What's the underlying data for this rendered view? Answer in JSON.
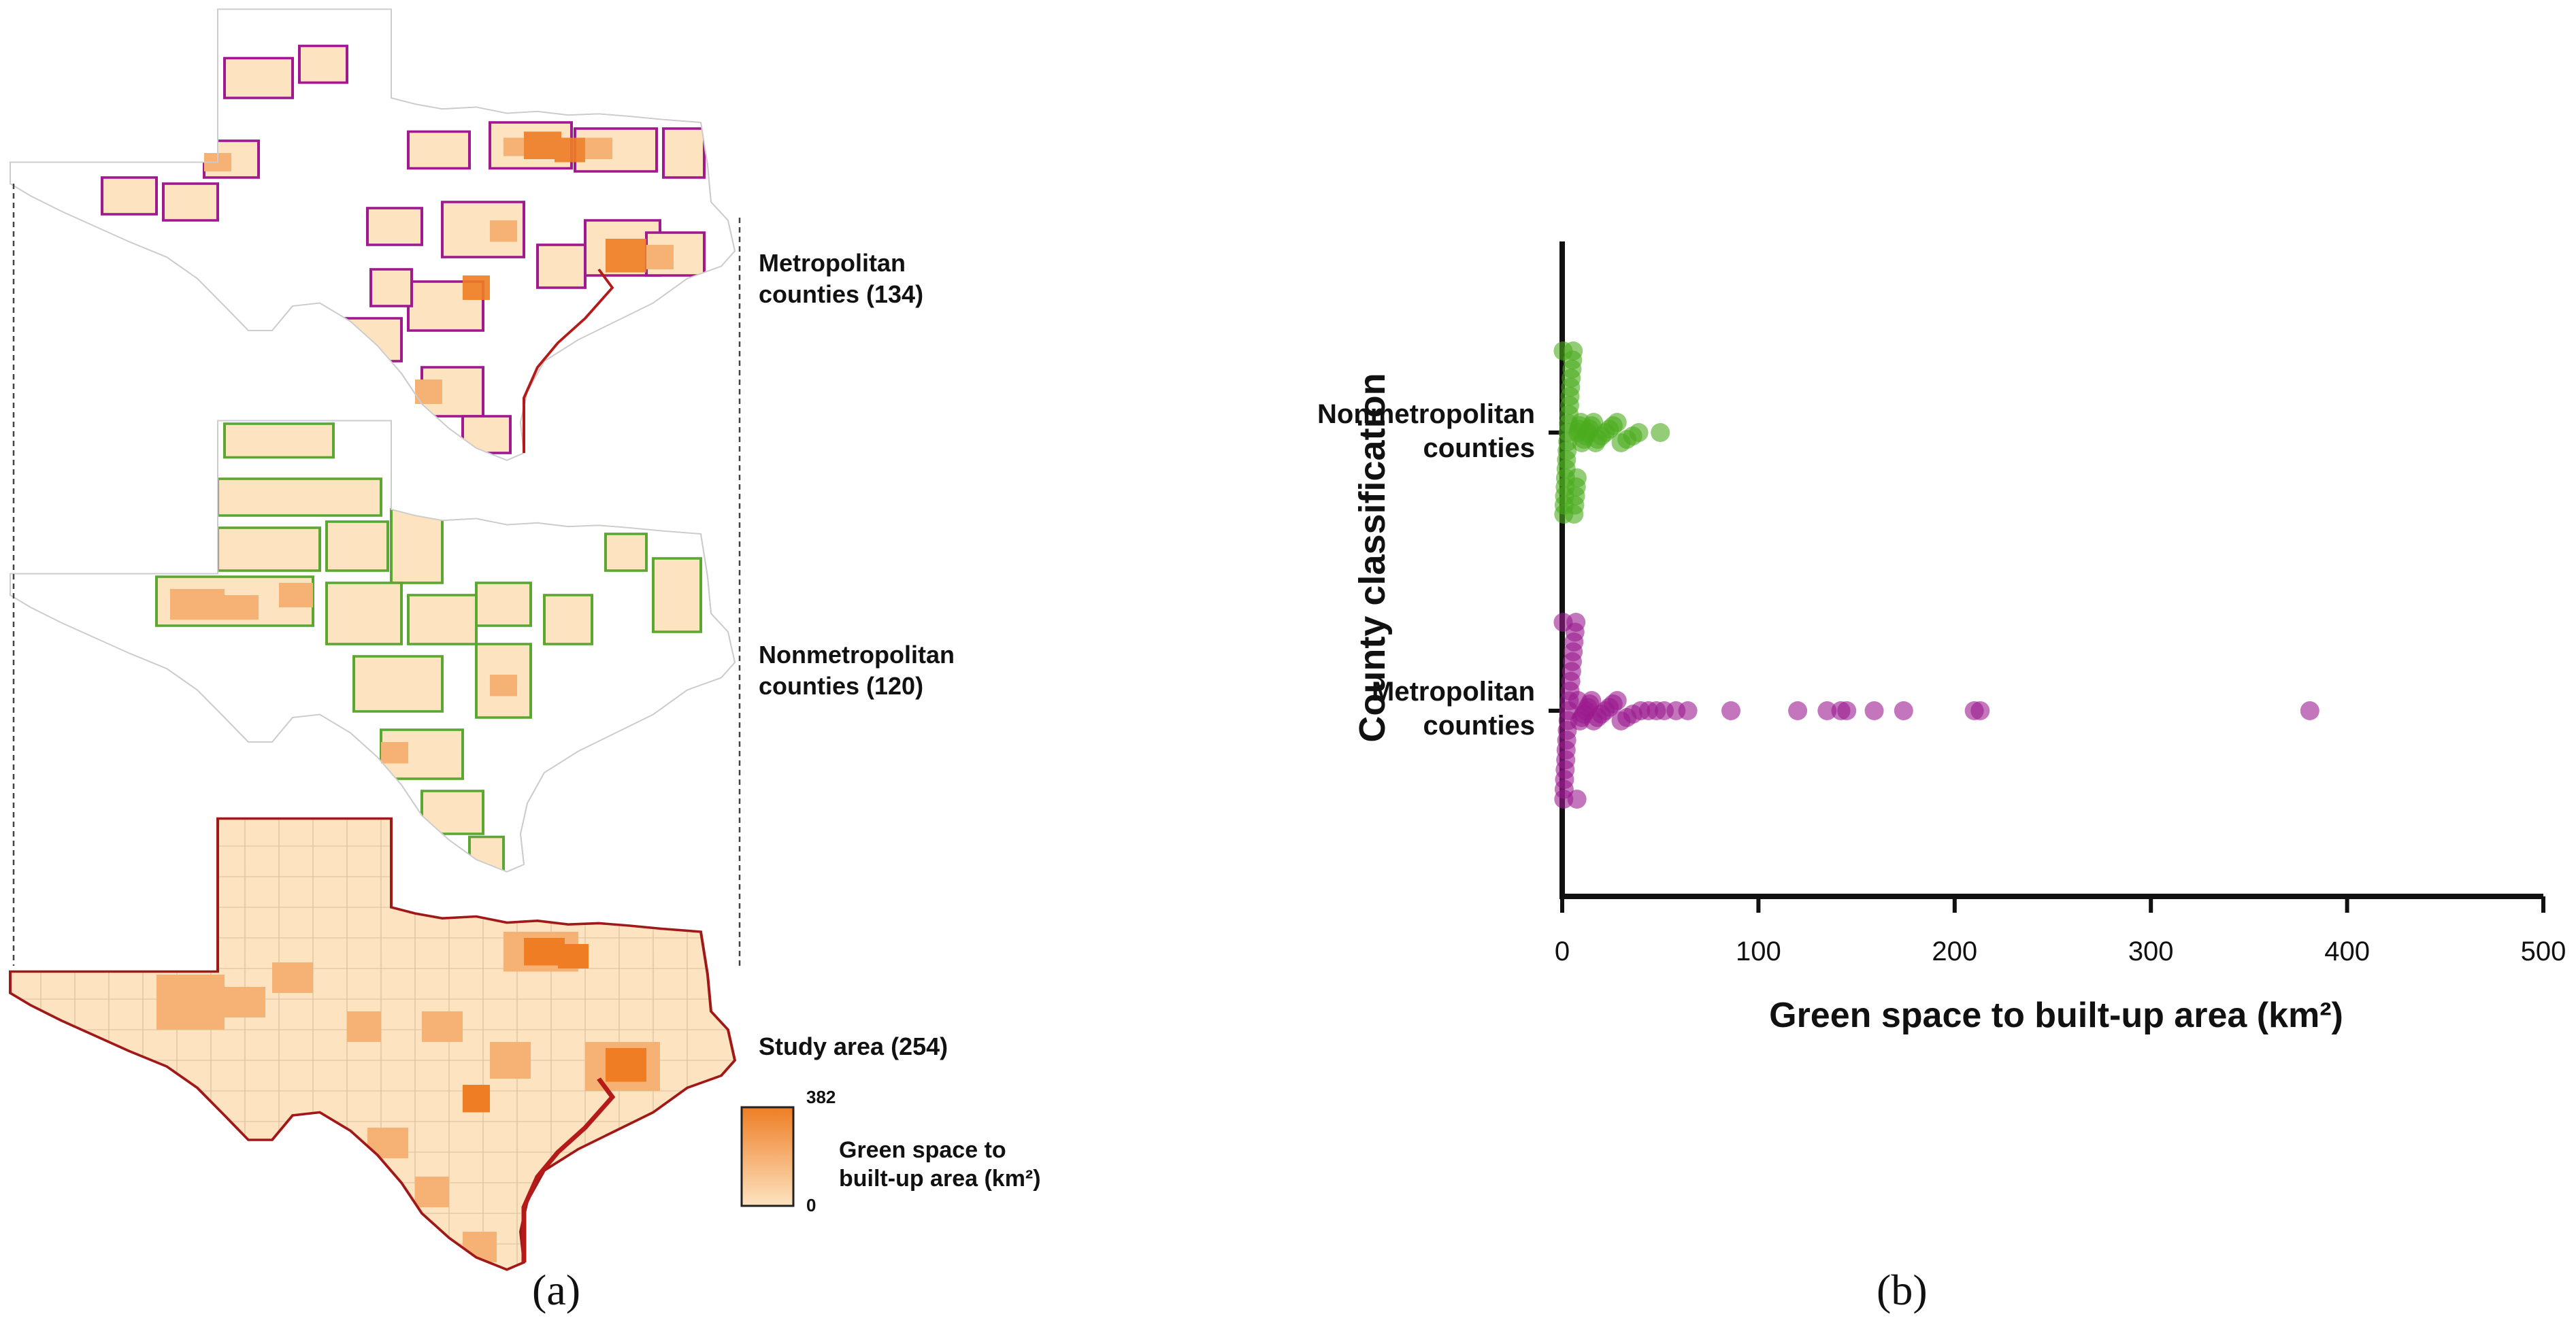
{
  "panel_a": {
    "label": "(a)",
    "maps": [
      {
        "name": "metro",
        "label_line1": "Metropolitan",
        "label_line2": "counties (134)",
        "outline": "#a0198e"
      },
      {
        "name": "nonmetro",
        "label_line1": "Nonmetropolitan",
        "label_line2": "counties (120)",
        "outline": "#5aa832"
      },
      {
        "name": "study",
        "label_line1": "Study area (254)",
        "label_line2": "",
        "outline": "#a01818"
      }
    ],
    "legend": {
      "max": "382",
      "min": "0",
      "title_line1": "Green space to",
      "title_line2": "built-up area (km²)",
      "color_low": "#fde3c0",
      "color_high": "#ee7d24"
    },
    "colors": {
      "light_fill": "#fde3c0",
      "mid_fill": "#f6b274",
      "dark_fill": "#ee7d24",
      "county_line": "#c8c8c8",
      "coast": "#b51a1a"
    }
  },
  "panel_b": {
    "label": "(b)"
  },
  "chart_data": {
    "type": "scatter",
    "title": "",
    "xlabel": "Green space to built-up area (km²)",
    "ylabel": "County classification",
    "xlim": [
      0,
      500
    ],
    "xticks": [
      0,
      100,
      200,
      300,
      400,
      500
    ],
    "categories": [
      "Nonmetropolitan counties",
      "Metropolitan counties"
    ],
    "category_lines": [
      [
        "Nonmetropolitan",
        "counties"
      ],
      [
        "Metropolitan",
        "counties"
      ]
    ],
    "grid": false,
    "series": [
      {
        "name": "Nonmetropolitan counties",
        "color": "#4bab1e",
        "values": [
          0.5,
          0.8,
          1,
          1.2,
          1.5,
          1.7,
          2,
          2.2,
          2.5,
          2.8,
          3,
          3.2,
          3.5,
          3.8,
          4,
          4.3,
          4.6,
          5,
          5.3,
          5.6,
          6,
          6.4,
          6.8,
          7.2,
          7.6,
          8,
          8.5,
          9,
          9.5,
          10,
          11,
          12,
          13,
          14,
          15,
          16,
          17,
          18,
          20,
          22,
          24,
          26,
          28,
          30,
          33,
          36,
          39,
          50
        ]
      },
      {
        "name": "Metropolitan counties",
        "color": "#9b1a8f",
        "values": [
          0.5,
          0.8,
          1,
          1.2,
          1.5,
          1.8,
          2,
          2.3,
          2.6,
          3,
          3.3,
          3.6,
          4,
          4.4,
          4.8,
          5.2,
          5.6,
          6,
          6.5,
          7,
          7.5,
          8,
          9,
          10,
          11,
          12,
          13,
          14,
          15,
          16,
          18,
          20,
          22,
          24,
          26,
          28,
          30,
          33,
          36,
          40,
          44,
          48,
          52,
          58,
          64,
          86,
          120,
          135,
          142,
          145,
          159,
          174,
          210,
          213,
          381
        ]
      }
    ]
  }
}
